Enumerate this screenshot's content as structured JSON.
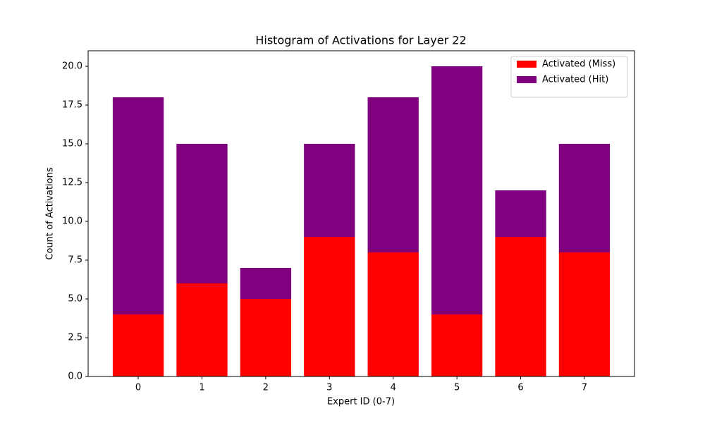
{
  "chart_data": {
    "type": "stacked-bar",
    "title": "Histogram of Activations for Layer 22",
    "x_label": "Expert ID (0-7)",
    "y_label": "Count of Activations",
    "categories": [
      "0",
      "1",
      "2",
      "3",
      "4",
      "5",
      "6",
      "7"
    ],
    "series": [
      {
        "name": "Activated (Miss)",
        "color": "#ff0000",
        "values": [
          4,
          6,
          5,
          9,
          8,
          4,
          9,
          8
        ]
      },
      {
        "name": "Activated (Hit)",
        "color": "#800080",
        "values": [
          14,
          9,
          2,
          6,
          10,
          16,
          3,
          7
        ]
      }
    ],
    "ylim": [
      0,
      21
    ],
    "yticks": [
      {
        "value": 0,
        "label": "0.0"
      },
      2.5,
      {
        "value": 5,
        "label": "5.0"
      },
      7.5,
      {
        "value": 10,
        "label": "10.0"
      },
      12.5,
      {
        "value": 15,
        "label": "15.0"
      },
      17.5,
      {
        "value": 20,
        "label": "20.0"
      }
    ],
    "legend": "upper right"
  }
}
